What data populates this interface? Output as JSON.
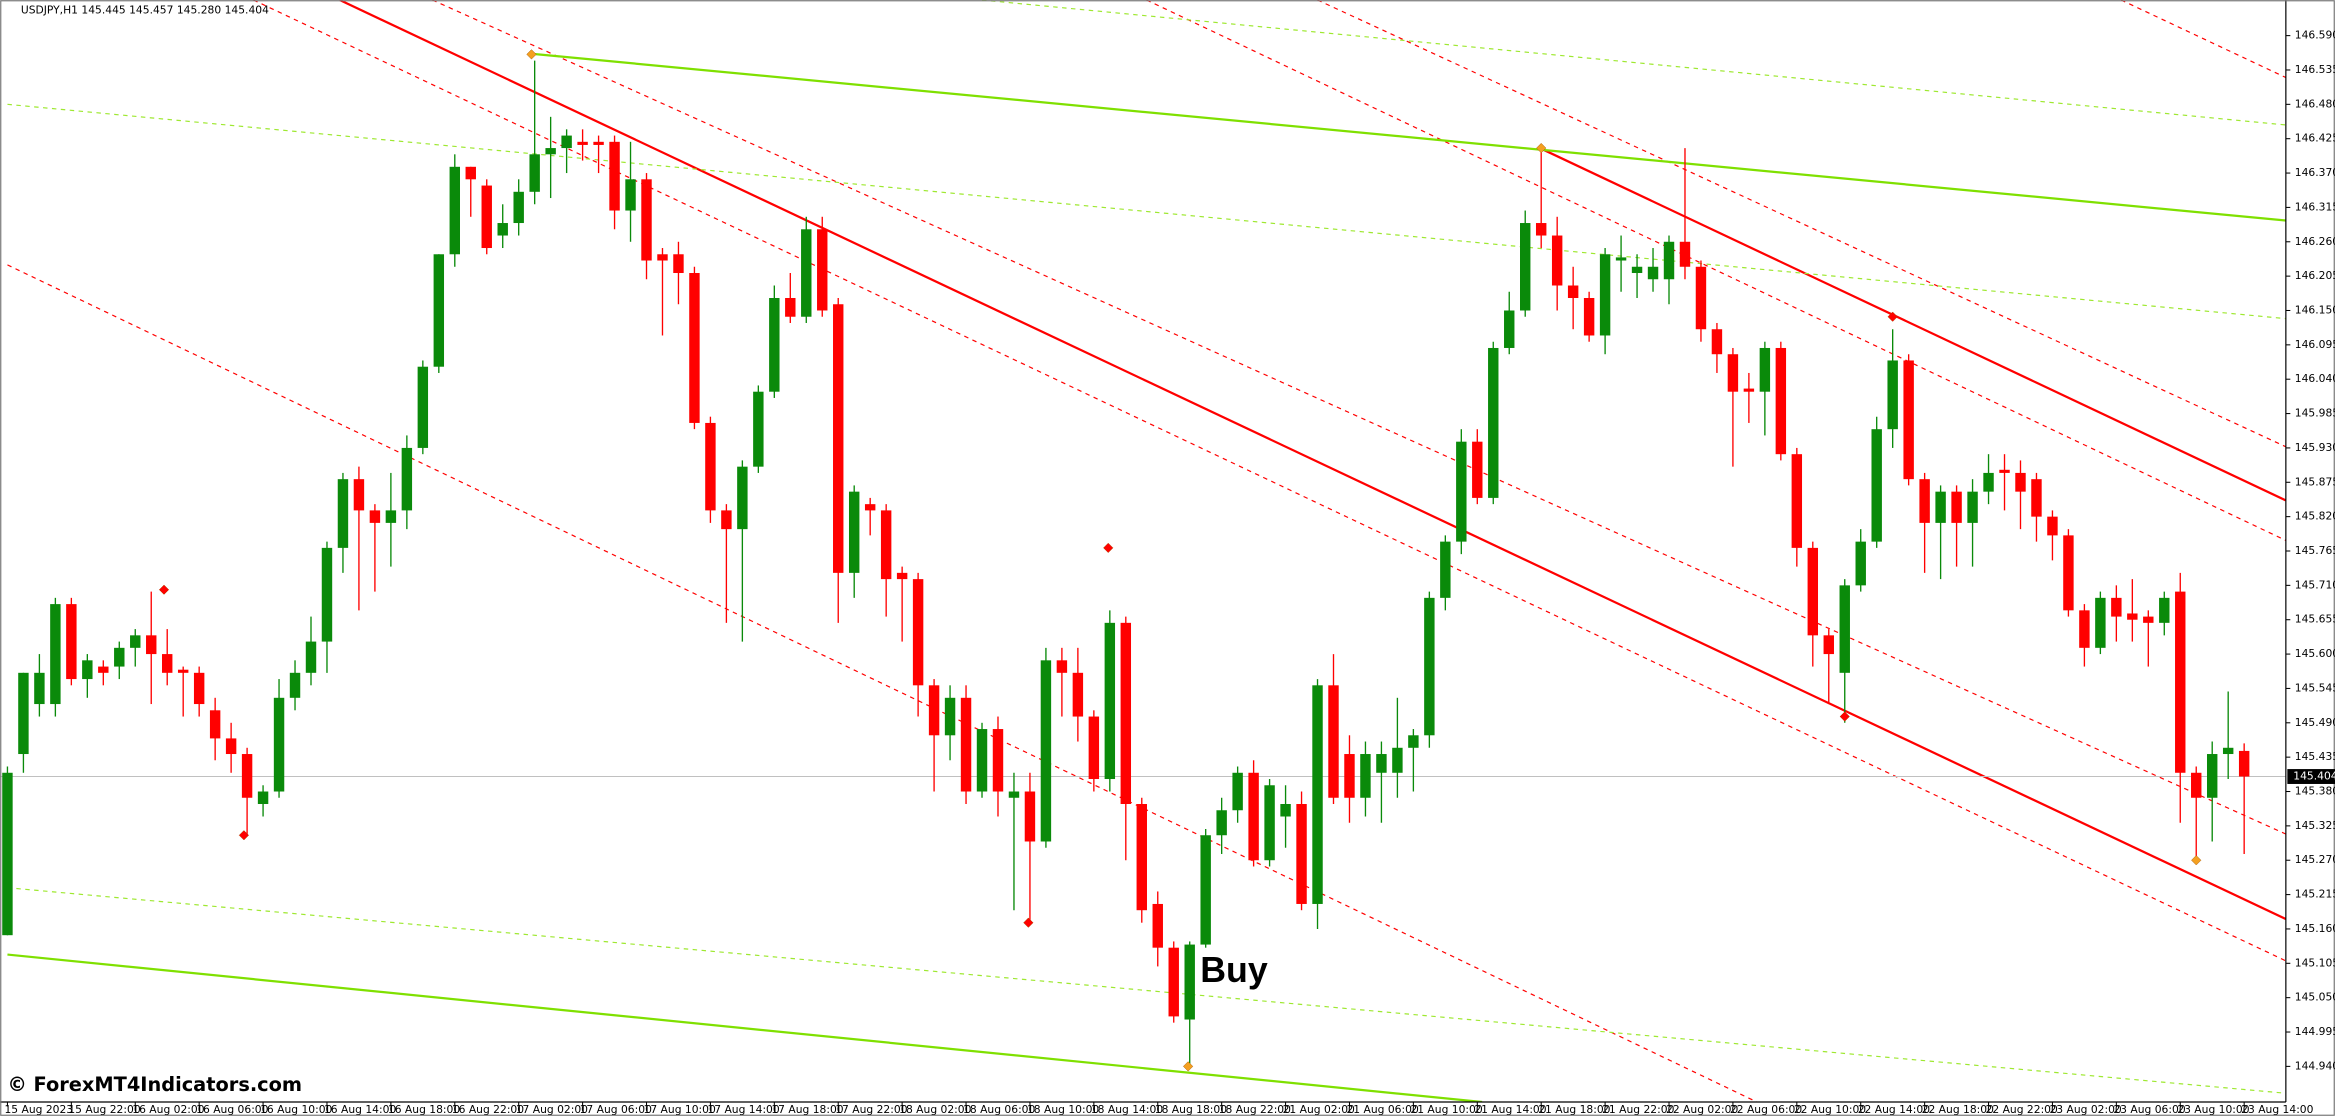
{
  "chart_data": {
    "type": "candlestick",
    "title": "USDJPY,H1 145.445 145.457 145.280 145.404",
    "annotation": "Buy",
    "watermark": "© ForexMT4Indicators.com",
    "up_color": "#0a8a0a",
    "down_color": "#ff0000",
    "grid": false,
    "last_price": 145.404,
    "ylim": [
      144.883,
      146.647
    ],
    "yticks": [
      {
        "value": 146.59,
        "label": "146.590"
      },
      146.535,
      {
        "value": 146.48,
        "label": "146.480"
      },
      146.425,
      {
        "value": 146.37,
        "label": "146.370"
      },
      146.315,
      {
        "value": 146.26,
        "label": "146.260"
      },
      146.205,
      {
        "value": 146.15,
        "label": "146.150"
      },
      146.095,
      {
        "value": 146.04,
        "label": "146.040"
      },
      145.985,
      {
        "value": 145.93,
        "label": "145.930"
      },
      145.875,
      {
        "value": 145.82,
        "label": "145.820"
      },
      145.765,
      {
        "value": 145.71,
        "label": "145.710"
      },
      145.655,
      {
        "value": 145.6,
        "label": "145.600"
      },
      145.545,
      {
        "value": 145.49,
        "label": "145.490"
      },
      145.435,
      {
        "value": 145.38,
        "label": "145.380"
      },
      145.325,
      {
        "value": 145.27,
        "label": "145.270"
      },
      145.215,
      {
        "value": 145.16,
        "label": "145.160"
      },
      145.105,
      {
        "value": 145.05,
        "label": "145.050"
      },
      144.995,
      {
        "value": 144.94,
        "label": "144.940"
      }
    ],
    "categories": [
      "15 Aug 2023",
      null,
      null,
      null,
      "15 Aug 22:00",
      null,
      null,
      null,
      "16 Aug 02:00",
      null,
      null,
      null,
      "16 Aug 06:00",
      null,
      null,
      null,
      "16 Aug 10:00",
      null,
      null,
      null,
      "16 Aug 14:00",
      null,
      null,
      null,
      "16 Aug 18:00",
      null,
      null,
      null,
      "16 Aug 22:00",
      null,
      null,
      null,
      "17 Aug 02:00",
      null,
      null,
      null,
      "17 Aug 06:00",
      null,
      null,
      null,
      "17 Aug 10:00",
      null,
      null,
      null,
      "17 Aug 14:00",
      null,
      null,
      null,
      "17 Aug 18:00",
      null,
      null,
      null,
      "17 Aug 22:00",
      null,
      null,
      null,
      "18 Aug 02:00",
      null,
      null,
      null,
      "18 Aug 06:00",
      null,
      null,
      null,
      "18 Aug 10:00",
      null,
      null,
      null,
      "18 Aug 14:00",
      null,
      null,
      null,
      "18 Aug 18:00",
      null,
      null,
      null,
      "18 Aug 22:00",
      null,
      null,
      null,
      "21 Aug 02:00",
      null,
      null,
      null,
      "21 Aug 06:00",
      null,
      null,
      null,
      "21 Aug 10:00",
      null,
      null,
      null,
      "21 Aug 14:00",
      null,
      null,
      null,
      "21 Aug 18:00",
      null,
      null,
      null,
      "21 Aug 22:00",
      null,
      null,
      null,
      "22 Aug 02:00",
      null,
      null,
      null,
      "22 Aug 06:00",
      null,
      null,
      null,
      "22 Aug 10:00",
      null,
      null,
      null,
      "22 Aug 14:00",
      null,
      null,
      null,
      "22 Aug 18:00",
      null,
      null,
      null,
      "22 Aug 22:00",
      null,
      null,
      null,
      "23 Aug 02:00",
      null,
      null,
      null,
      "23 Aug 06:00",
      null,
      null,
      null,
      "23 Aug 10:00",
      null,
      null,
      null,
      "23 Aug 14:00"
    ],
    "open": [
      145.15,
      145.44,
      145.52,
      145.52,
      145.68,
      145.56,
      145.58,
      145.58,
      145.61,
      145.63,
      145.6,
      145.575,
      145.57,
      145.51,
      145.465,
      145.44,
      145.36,
      145.38,
      145.53,
      145.57,
      145.62,
      145.77,
      145.88,
      145.83,
      145.81,
      145.83,
      145.93,
      146.06,
      146.24,
      146.38,
      146.35,
      146.27,
      146.29,
      146.34,
      146.4,
      146.41,
      146.42,
      146.42,
      146.42,
      146.31,
      146.36,
      146.24,
      146.24,
      146.21,
      145.97,
      145.83,
      145.8,
      145.9,
      146.02,
      146.17,
      146.14,
      146.28,
      146.16,
      145.73,
      145.84,
      145.83,
      145.73,
      145.72,
      145.55,
      145.47,
      145.53,
      145.38,
      145.48,
      145.37,
      145.38,
      145.3,
      145.59,
      145.57,
      145.5,
      145.4,
      145.65,
      145.36,
      145.2,
      145.13,
      145.015,
      145.135,
      145.31,
      145.35,
      145.41,
      145.27,
      145.34,
      145.36,
      145.2,
      145.55,
      145.44,
      145.37,
      145.41,
      145.41,
      145.45,
      145.47,
      145.69,
      145.78,
      145.94,
      145.85,
      146.09,
      146.15,
      146.29,
      146.27,
      146.19,
      146.17,
      146.11,
      146.23,
      146.21,
      146.2,
      146.2,
      146.26,
      146.22,
      146.12,
      146.08,
      146.025,
      146.02,
      146.09,
      145.92,
      145.77,
      145.63,
      145.57,
      145.71,
      145.78,
      145.96,
      146.07,
      145.88,
      145.81,
      145.86,
      145.81,
      145.86,
      145.895,
      145.89,
      145.88,
      145.82,
      145.79,
      145.67,
      145.61,
      145.69,
      145.665,
      145.66,
      145.65,
      145.7,
      145.41,
      145.37,
      145.44,
      145.445
    ],
    "high": [
      145.42,
      145.57,
      145.6,
      145.69,
      145.69,
      145.6,
      145.59,
      145.62,
      145.64,
      145.7,
      145.64,
      145.58,
      145.58,
      145.53,
      145.49,
      145.45,
      145.39,
      145.56,
      145.59,
      145.66,
      145.78,
      145.89,
      145.9,
      145.84,
      145.89,
      145.95,
      146.07,
      146.24,
      146.4,
      146.38,
      146.36,
      146.32,
      146.36,
      146.55,
      146.46,
      146.44,
      146.44,
      146.43,
      146.43,
      146.42,
      146.37,
      146.25,
      146.26,
      146.22,
      145.98,
      145.84,
      145.91,
      146.03,
      146.19,
      146.21,
      146.3,
      146.3,
      146.17,
      145.87,
      145.85,
      145.84,
      145.74,
      145.73,
      145.56,
      145.55,
      145.55,
      145.49,
      145.5,
      145.41,
      145.41,
      145.61,
      145.61,
      145.61,
      145.51,
      145.67,
      145.66,
      145.37,
      145.22,
      145.14,
      145.14,
      145.32,
      145.37,
      145.42,
      145.43,
      145.4,
      145.39,
      145.38,
      145.56,
      145.6,
      145.47,
      145.46,
      145.46,
      145.53,
      145.48,
      145.7,
      145.79,
      145.96,
      145.96,
      146.1,
      146.18,
      146.31,
      146.41,
      146.3,
      146.22,
      146.18,
      146.25,
      146.27,
      146.24,
      146.25,
      146.27,
      146.41,
      146.23,
      146.13,
      146.09,
      146.05,
      146.1,
      146.1,
      145.93,
      145.78,
      145.64,
      145.72,
      145.8,
      145.98,
      146.12,
      146.08,
      145.89,
      145.87,
      145.87,
      145.88,
      145.92,
      145.92,
      145.91,
      145.89,
      145.83,
      145.8,
      145.68,
      145.7,
      145.71,
      145.72,
      145.67,
      145.7,
      145.73,
      145.42,
      145.46,
      145.54,
      145.457
    ],
    "low": [
      145.15,
      145.41,
      145.5,
      145.5,
      145.55,
      145.53,
      145.55,
      145.56,
      145.58,
      145.52,
      145.55,
      145.5,
      145.5,
      145.43,
      145.41,
      145.31,
      145.34,
      145.37,
      145.51,
      145.55,
      145.57,
      145.73,
      145.67,
      145.7,
      145.74,
      145.8,
      145.92,
      146.05,
      146.22,
      146.3,
      146.24,
      146.25,
      146.27,
      146.32,
      146.33,
      146.37,
      146.39,
      146.37,
      146.28,
      146.26,
      146.2,
      146.11,
      146.16,
      145.96,
      145.81,
      145.65,
      145.62,
      145.89,
      146.01,
      146.13,
      146.13,
      146.14,
      145.65,
      145.69,
      145.79,
      145.66,
      145.62,
      145.5,
      145.38,
      145.43,
      145.36,
      145.37,
      145.34,
      145.19,
      145.17,
      145.29,
      145.5,
      145.46,
      145.38,
      145.38,
      145.27,
      145.17,
      145.1,
      145.01,
      144.94,
      145.13,
      145.28,
      145.33,
      145.26,
      145.26,
      145.29,
      145.19,
      145.16,
      145.36,
      145.33,
      145.34,
      145.33,
      145.37,
      145.38,
      145.45,
      145.67,
      145.76,
      145.84,
      145.84,
      146.08,
      146.14,
      146.25,
      146.15,
      146.12,
      146.1,
      146.08,
      146.18,
      146.17,
      146.18,
      146.16,
      146.2,
      146.1,
      146.05,
      145.9,
      145.97,
      145.95,
      145.91,
      145.74,
      145.58,
      145.52,
      145.49,
      145.7,
      145.77,
      145.93,
      145.87,
      145.73,
      145.72,
      145.74,
      145.74,
      145.84,
      145.83,
      145.8,
      145.78,
      145.75,
      145.66,
      145.58,
      145.6,
      145.62,
      145.62,
      145.58,
      145.63,
      145.33,
      145.27,
      145.3,
      145.4,
      145.28
    ],
    "close": [
      145.41,
      145.57,
      145.57,
      145.68,
      145.56,
      145.59,
      145.57,
      145.61,
      145.63,
      145.6,
      145.57,
      145.57,
      145.52,
      145.465,
      145.44,
      145.37,
      145.38,
      145.53,
      145.57,
      145.62,
      145.77,
      145.88,
      145.83,
      145.81,
      145.83,
      145.93,
      146.06,
      146.24,
      146.38,
      146.36,
      146.25,
      146.29,
      146.34,
      146.4,
      146.41,
      146.43,
      146.415,
      146.415,
      146.31,
      146.36,
      146.23,
      146.23,
      146.21,
      145.97,
      145.83,
      145.8,
      145.9,
      146.02,
      146.17,
      146.14,
      146.28,
      146.15,
      145.73,
      145.86,
      145.83,
      145.72,
      145.72,
      145.55,
      145.47,
      145.53,
      145.38,
      145.48,
      145.38,
      145.38,
      145.3,
      145.59,
      145.57,
      145.5,
      145.4,
      145.65,
      145.36,
      145.19,
      145.13,
      145.02,
      145.135,
      145.31,
      145.35,
      145.41,
      145.27,
      145.39,
      145.36,
      145.2,
      145.55,
      145.37,
      145.37,
      145.44,
      145.44,
      145.45,
      145.47,
      145.69,
      145.78,
      145.94,
      145.85,
      146.09,
      146.15,
      146.29,
      146.27,
      146.19,
      146.17,
      146.11,
      146.24,
      146.235,
      146.22,
      146.22,
      146.26,
      146.22,
      146.12,
      146.08,
      146.02,
      146.02,
      146.09,
      145.92,
      145.77,
      145.63,
      145.6,
      145.71,
      145.78,
      145.96,
      146.07,
      145.88,
      145.81,
      145.86,
      145.81,
      145.86,
      145.89,
      145.89,
      145.86,
      145.82,
      145.79,
      145.67,
      145.61,
      145.69,
      145.66,
      145.655,
      145.65,
      145.69,
      145.41,
      145.37,
      145.44,
      145.45,
      145.404
    ],
    "trend_lines": [
      {
        "color": "#ff0000",
        "dashed": false,
        "x": [
          20.8,
          142.6
        ],
        "values": [
          146.647,
          145.176
        ]
      },
      {
        "color": "#ff0000",
        "dashed": false,
        "x": [
          96.0,
          142.6
        ],
        "values": [
          146.409,
          145.846
        ]
      },
      {
        "color": "#ff0000",
        "dashed": true,
        "x": [
          15.4,
          142.6
        ],
        "values": [
          146.647,
          145.109
        ]
      },
      {
        "color": "#ff0000",
        "dashed": true,
        "x": [
          26.6,
          142.6
        ],
        "values": [
          146.647,
          145.312
        ]
      },
      {
        "color": "#ff0000",
        "dashed": true,
        "x": [
          0,
          109.5
        ],
        "values": [
          146.223,
          144.883
        ]
      },
      {
        "color": "#ff0000",
        "dashed": true,
        "x": [
          71.3,
          142.6
        ],
        "values": [
          146.647,
          145.782
        ]
      },
      {
        "color": "#ff0000",
        "dashed": true,
        "x": [
          82.0,
          142.6
        ],
        "values": [
          146.647,
          145.932
        ]
      },
      {
        "color": "#ff0000",
        "dashed": true,
        "x": [
          132.3,
          142.6
        ],
        "values": [
          146.647,
          146.523
        ]
      },
      {
        "color": "#7fe000",
        "dashed": false,
        "x": [
          32.8,
          142.6
        ],
        "values": [
          146.561,
          146.294
        ]
      },
      {
        "color": "#7fe000",
        "dashed": false,
        "x": [
          0,
          92.3
        ],
        "values": [
          145.119,
          144.883
        ]
      },
      {
        "color": "#9ee830",
        "dashed": true,
        "x": [
          61.0,
          142.6
        ],
        "values": [
          146.647,
          146.447
        ]
      },
      {
        "color": "#9ee830",
        "dashed": true,
        "x": [
          0,
          142.6
        ],
        "values": [
          146.48,
          146.137
        ]
      },
      {
        "color": "#9ee830",
        "dashed": true,
        "x": [
          0,
          142.6
        ],
        "values": [
          145.226,
          144.897
        ]
      }
    ],
    "markers": [
      {
        "color": "#ff0000",
        "x": 9.8,
        "value": 145.703
      },
      {
        "color": "#ff0000",
        "x": 14.8,
        "value": 145.31
      },
      {
        "color": "#f4a020",
        "x": 32.8,
        "value": 146.56
      },
      {
        "color": "#ff0000",
        "x": 68.9,
        "value": 145.77
      },
      {
        "color": "#ff0000",
        "x": 63.9,
        "value": 145.17
      },
      {
        "color": "#f4a020",
        "x": 73.9,
        "value": 144.94
      },
      {
        "color": "#f4a020",
        "x": 96.0,
        "value": 146.41
      },
      {
        "color": "#ff0000",
        "x": 118.0,
        "value": 146.14
      },
      {
        "color": "#ff0000",
        "x": 115.0,
        "value": 145.5
      },
      {
        "color": "#f4a020",
        "x": 137.0,
        "value": 145.27
      }
    ]
  }
}
